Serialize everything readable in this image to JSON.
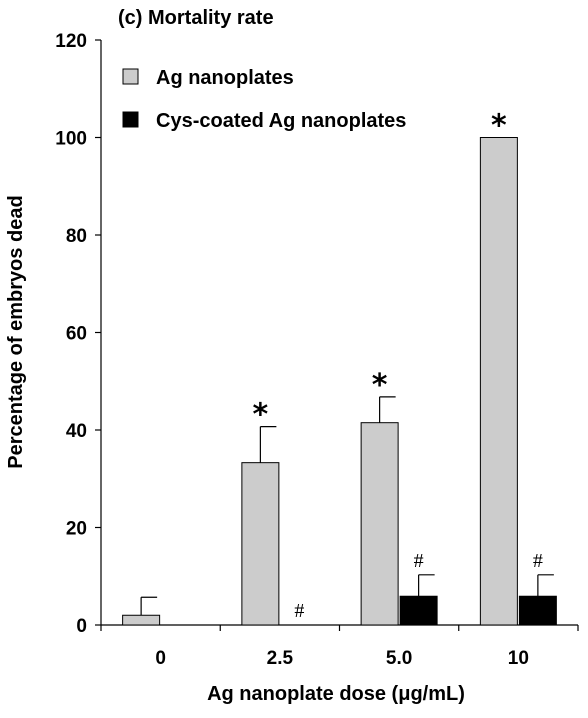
{
  "chart_data": {
    "type": "bar",
    "title": "(c) Mortality rate",
    "xlabel": "Ag nanoplate dose (μg/mL)",
    "ylabel": "Percentage of embryos dead",
    "ylim": [
      0,
      120
    ],
    "yticks": [
      "0",
      "20",
      "40",
      "60",
      "80",
      "100",
      "120"
    ],
    "categories": [
      "0",
      "2.5",
      "5.0",
      "10"
    ],
    "legend_position": "top-left",
    "series": [
      {
        "name": "Ag nanoplates",
        "color": "#cccccc",
        "values": [
          2,
          33.3,
          41.5,
          100
        ],
        "error": [
          3.7,
          7.4,
          5.3,
          0
        ],
        "markers": [
          "",
          "*",
          "*",
          "*"
        ]
      },
      {
        "name": "Cys-coated Ag nanoplates",
        "color": "#000000",
        "values": [
          0,
          0,
          5.9,
          5.9
        ],
        "error": [
          0,
          0,
          4.4,
          4.4
        ],
        "markers": [
          "",
          "#",
          "#",
          "#"
        ]
      }
    ]
  }
}
